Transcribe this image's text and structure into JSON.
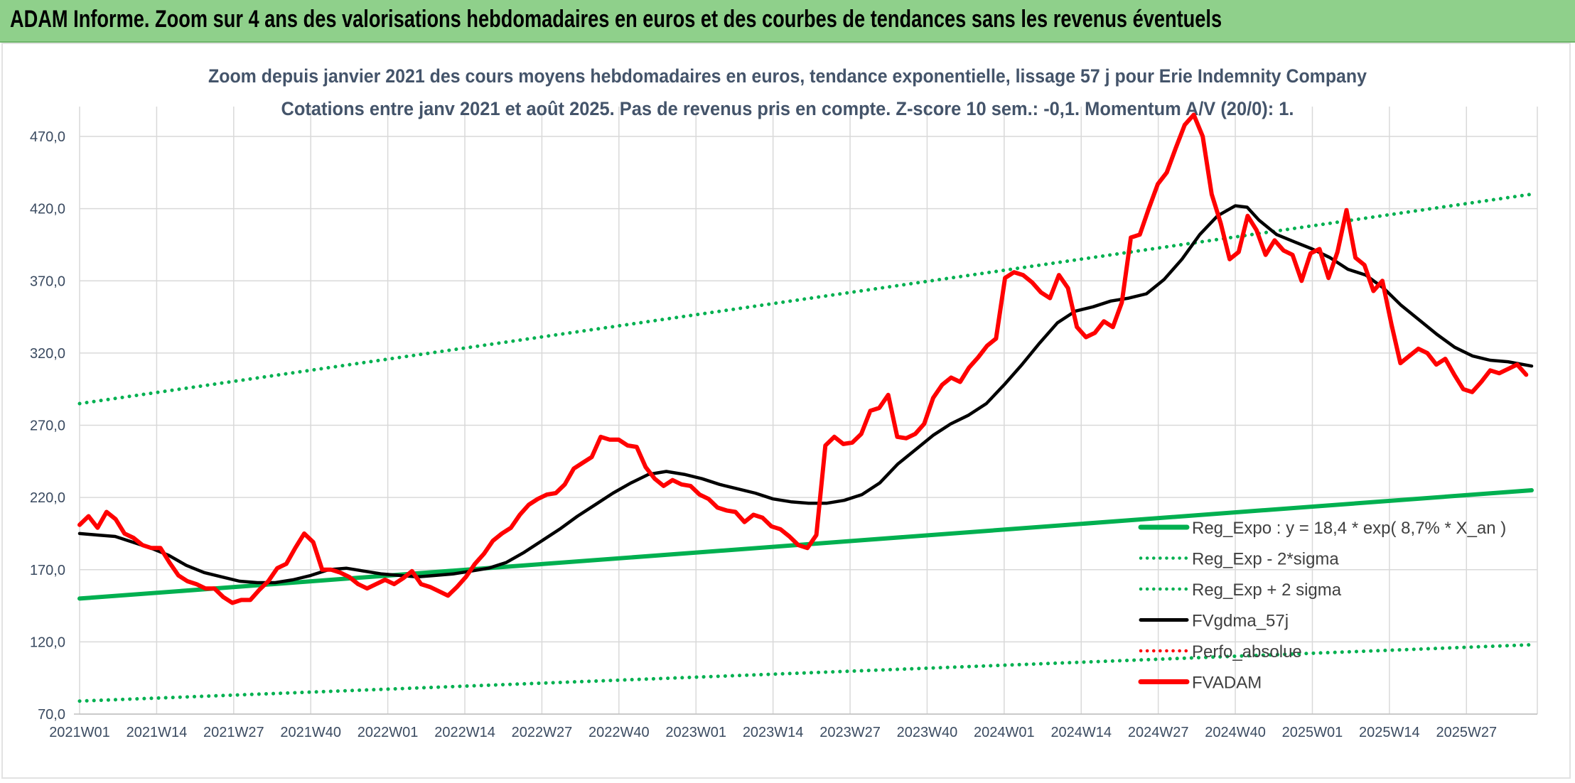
{
  "banner": {
    "title": "ADAM Informe. Zoom sur 4 ans des valorisations hebdomadaires en euros et des courbes de tendances sans les revenus éventuels"
  },
  "chart_data": {
    "type": "line",
    "title": "Zoom depuis janvier 2021 des cours moyens hebdomadaires en euros, tendance exponentielle, lissage 57 j pour Erie Indemnity Company",
    "subtitle": "Cotations entre janv 2021 et août 2025. Pas de revenus pris en compte. Z-score 10 sem.: -0,1. Momentum A/V (20/0): 1.",
    "xlabel": "",
    "ylabel": "",
    "ylim": [
      70,
      470
    ],
    "yticks": [
      "70,0",
      "120,0",
      "170,0",
      "220,0",
      "270,0",
      "320,0",
      "370,0",
      "420,0",
      "470,0"
    ],
    "ytick_values": [
      70,
      120,
      170,
      220,
      270,
      320,
      370,
      420,
      470
    ],
    "x_range_weeks": [
      0,
      245
    ],
    "xticks": [
      "2021W01",
      "2021W14",
      "2021W27",
      "2021W40",
      "2022W01",
      "2022W14",
      "2022W27",
      "2022W40",
      "2023W01",
      "2023W14",
      "2023W27",
      "2023W40",
      "2024W01",
      "2024W14",
      "2024W27",
      "2024W40",
      "2025W01",
      "2025W14",
      "2025W27"
    ],
    "xtick_weeks": [
      0,
      13,
      26,
      39,
      52,
      65,
      78,
      91,
      104,
      117,
      130,
      143,
      156,
      169,
      182,
      195,
      208,
      221,
      234
    ],
    "grid": true,
    "legend_position": "right",
    "series": [
      {
        "name": "Reg_Expo : y = 18,4 * exp( 8,7% *  X_an )",
        "color": "#00b050",
        "style": "solid",
        "points": [
          [
            0,
            150
          ],
          [
            245,
            225
          ]
        ]
      },
      {
        "name": "Reg_Exp - 2*sigma",
        "color": "#00b050",
        "style": "dotted",
        "points": [
          [
            0,
            79
          ],
          [
            245,
            118
          ]
        ]
      },
      {
        "name": "Reg_Exp + 2 sigma",
        "color": "#00b050",
        "style": "dotted",
        "points": [
          [
            0,
            285
          ],
          [
            245,
            430
          ]
        ]
      },
      {
        "name": "FVgdma_57j",
        "color": "#000000",
        "style": "solid",
        "points": [
          [
            0,
            195
          ],
          [
            3,
            194
          ],
          [
            6,
            193
          ],
          [
            9,
            189
          ],
          [
            12,
            185
          ],
          [
            15,
            180
          ],
          [
            18,
            173
          ],
          [
            21,
            168
          ],
          [
            24,
            165
          ],
          [
            27,
            162
          ],
          [
            30,
            161
          ],
          [
            33,
            161
          ],
          [
            36,
            163
          ],
          [
            39,
            166
          ],
          [
            42,
            170
          ],
          [
            45,
            171
          ],
          [
            48,
            169
          ],
          [
            51,
            167
          ],
          [
            54,
            166
          ],
          [
            57,
            165
          ],
          [
            60,
            166
          ],
          [
            63,
            167
          ],
          [
            66,
            169
          ],
          [
            69,
            171
          ],
          [
            72,
            175
          ],
          [
            75,
            182
          ],
          [
            78,
            190
          ],
          [
            81,
            198
          ],
          [
            84,
            207
          ],
          [
            87,
            215
          ],
          [
            90,
            223
          ],
          [
            93,
            230
          ],
          [
            96,
            236
          ],
          [
            99,
            238
          ],
          [
            102,
            236
          ],
          [
            105,
            233
          ],
          [
            108,
            229
          ],
          [
            111,
            226
          ],
          [
            114,
            223
          ],
          [
            117,
            219
          ],
          [
            120,
            217
          ],
          [
            123,
            216
          ],
          [
            126,
            216
          ],
          [
            129,
            218
          ],
          [
            132,
            222
          ],
          [
            135,
            230
          ],
          [
            138,
            243
          ],
          [
            141,
            253
          ],
          [
            144,
            263
          ],
          [
            147,
            271
          ],
          [
            150,
            277
          ],
          [
            153,
            285
          ],
          [
            156,
            298
          ],
          [
            159,
            312
          ],
          [
            162,
            327
          ],
          [
            165,
            341
          ],
          [
            168,
            349
          ],
          [
            171,
            352
          ],
          [
            174,
            356
          ],
          [
            177,
            358
          ],
          [
            180,
            361
          ],
          [
            183,
            371
          ],
          [
            186,
            385
          ],
          [
            189,
            402
          ],
          [
            192,
            415
          ],
          [
            195,
            422
          ],
          [
            197,
            421
          ],
          [
            199,
            412
          ],
          [
            202,
            402
          ],
          [
            205,
            397
          ],
          [
            208,
            392
          ],
          [
            211,
            386
          ],
          [
            214,
            378
          ],
          [
            217,
            374
          ],
          [
            220,
            365
          ],
          [
            223,
            353
          ],
          [
            226,
            343
          ],
          [
            229,
            333
          ],
          [
            232,
            324
          ],
          [
            235,
            318
          ],
          [
            238,
            315
          ],
          [
            241,
            314
          ],
          [
            245,
            311
          ]
        ]
      },
      {
        "name": "Perfo_absolue",
        "color": "#ff0000",
        "style": "dotted",
        "points": []
      },
      {
        "name": "FVADAM",
        "color": "#ff0000",
        "style": "solid",
        "points": [
          [
            0,
            201
          ],
          [
            2,
            207
          ],
          [
            4,
            199
          ],
          [
            6,
            210
          ],
          [
            8,
            205
          ],
          [
            10,
            195
          ],
          [
            12,
            192
          ],
          [
            14,
            187
          ],
          [
            16,
            185
          ],
          [
            18,
            185
          ],
          [
            20,
            175
          ],
          [
            22,
            166
          ],
          [
            24,
            162
          ],
          [
            26,
            160
          ],
          [
            28,
            157
          ],
          [
            30,
            157
          ],
          [
            32,
            151
          ],
          [
            34,
            147
          ],
          [
            36,
            149
          ],
          [
            38,
            149
          ],
          [
            40,
            156
          ],
          [
            42,
            162
          ],
          [
            44,
            171
          ],
          [
            46,
            174
          ],
          [
            48,
            185
          ],
          [
            50,
            195
          ],
          [
            52,
            189
          ],
          [
            54,
            170
          ],
          [
            56,
            170
          ],
          [
            58,
            168
          ],
          [
            60,
            165
          ],
          [
            62,
            160
          ],
          [
            64,
            157
          ],
          [
            66,
            160
          ],
          [
            68,
            163
          ],
          [
            70,
            160
          ],
          [
            72,
            164
          ],
          [
            74,
            169
          ],
          [
            76,
            160
          ],
          [
            78,
            158
          ],
          [
            80,
            155
          ],
          [
            82,
            152
          ],
          [
            84,
            158
          ],
          [
            86,
            165
          ],
          [
            88,
            174
          ],
          [
            90,
            181
          ],
          [
            92,
            190
          ],
          [
            94,
            195
          ],
          [
            96,
            199
          ],
          [
            98,
            208
          ],
          [
            100,
            215
          ],
          [
            102,
            219
          ],
          [
            104,
            222
          ],
          [
            106,
            223
          ],
          [
            108,
            229
          ],
          [
            110,
            240
          ],
          [
            112,
            244
          ],
          [
            114,
            248
          ],
          [
            116,
            262
          ],
          [
            118,
            260
          ],
          [
            120,
            260
          ],
          [
            122,
            256
          ],
          [
            124,
            255
          ],
          [
            126,
            241
          ],
          [
            128,
            233
          ],
          [
            130,
            228
          ],
          [
            132,
            232
          ],
          [
            134,
            229
          ],
          [
            136,
            228
          ],
          [
            138,
            222
          ],
          [
            140,
            219
          ],
          [
            142,
            213
          ],
          [
            144,
            211
          ],
          [
            146,
            210
          ],
          [
            148,
            203
          ],
          [
            150,
            208
          ],
          [
            152,
            206
          ],
          [
            154,
            200
          ],
          [
            156,
            198
          ],
          [
            158,
            193
          ],
          [
            160,
            187
          ],
          [
            162,
            185
          ],
          [
            164,
            194
          ],
          [
            166,
            256
          ],
          [
            168,
            262
          ],
          [
            170,
            257
          ],
          [
            172,
            258
          ],
          [
            174,
            264
          ],
          [
            176,
            280
          ],
          [
            178,
            282
          ],
          [
            180,
            291
          ],
          [
            182,
            262
          ],
          [
            184,
            261
          ],
          [
            186,
            264
          ],
          [
            188,
            271
          ],
          [
            190,
            289
          ],
          [
            192,
            298
          ],
          [
            194,
            303
          ],
          [
            196,
            300
          ],
          [
            198,
            310
          ],
          [
            200,
            317
          ],
          [
            202,
            325
          ],
          [
            204,
            330
          ],
          [
            206,
            372
          ],
          [
            208,
            376
          ],
          [
            210,
            374
          ],
          [
            212,
            369
          ],
          [
            214,
            362
          ],
          [
            216,
            358
          ],
          [
            218,
            374
          ],
          [
            220,
            365
          ],
          [
            222,
            338
          ],
          [
            224,
            331
          ],
          [
            226,
            334
          ],
          [
            228,
            342
          ],
          [
            230,
            338
          ],
          [
            232,
            355
          ],
          [
            234,
            400
          ],
          [
            236,
            402
          ],
          [
            238,
            420
          ],
          [
            240,
            437
          ],
          [
            242,
            445
          ],
          [
            244,
            462
          ],
          [
            246,
            478
          ],
          [
            248,
            485
          ],
          [
            250,
            470
          ],
          [
            252,
            430
          ],
          [
            254,
            410
          ],
          [
            256,
            385
          ],
          [
            258,
            390
          ],
          [
            260,
            415
          ],
          [
            262,
            405
          ],
          [
            264,
            388
          ],
          [
            266,
            398
          ],
          [
            268,
            391
          ],
          [
            270,
            388
          ],
          [
            272,
            370
          ],
          [
            274,
            389
          ],
          [
            276,
            392
          ],
          [
            278,
            372
          ],
          [
            280,
            390
          ],
          [
            282,
            419
          ],
          [
            284,
            386
          ],
          [
            286,
            381
          ],
          [
            288,
            363
          ],
          [
            290,
            370
          ],
          [
            292,
            340
          ],
          [
            294,
            313
          ],
          [
            296,
            318
          ],
          [
            298,
            323
          ],
          [
            300,
            320
          ],
          [
            302,
            312
          ],
          [
            304,
            316
          ],
          [
            306,
            305
          ],
          [
            308,
            295
          ],
          [
            310,
            293
          ],
          [
            312,
            300
          ],
          [
            314,
            308
          ],
          [
            316,
            306
          ],
          [
            318,
            309
          ],
          [
            320,
            312
          ],
          [
            322,
            305
          ]
        ],
        "x_scale": 0.758
      }
    ]
  }
}
